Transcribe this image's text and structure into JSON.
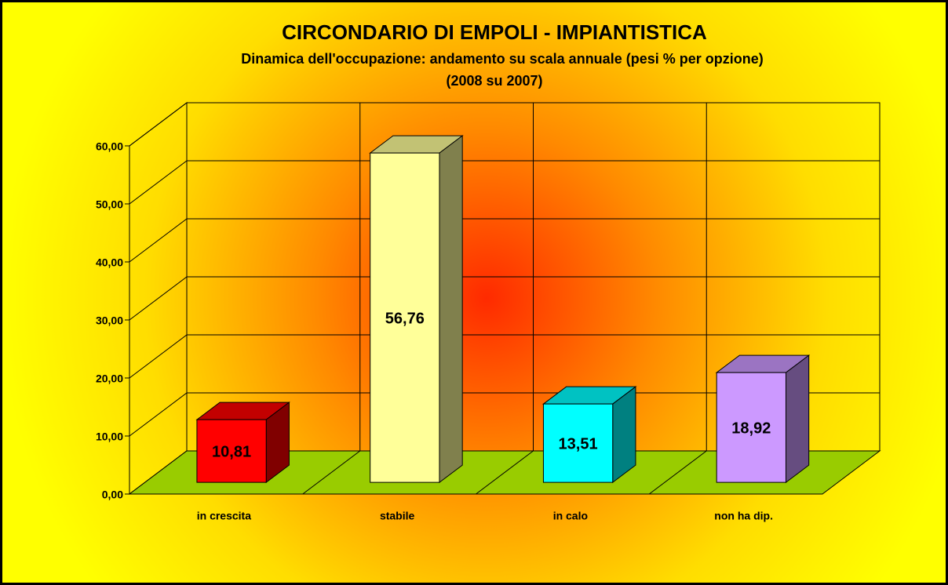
{
  "chart_data": {
    "type": "bar3d",
    "title": "CIRCONDARIO DI EMPOLI - IMPIANTISTICA",
    "subtitle": [
      "Dinamica dell'occupazione: andamento su scala annuale (pesi % per opzione)",
      "(2008 su 2007)"
    ],
    "categories": [
      "in crescita",
      "stabile",
      "in calo",
      "non ha dip."
    ],
    "values": [
      10.81,
      56.76,
      13.51,
      18.92
    ],
    "value_labels": [
      "10,81",
      "56,76",
      "13,51",
      "18,92"
    ],
    "colors": [
      "#ff0000",
      "#ffff99",
      "#00ffff",
      "#cc99ff"
    ],
    "ylim": [
      0,
      60
    ],
    "yticks": [
      {
        "value": 0,
        "label": "0,00"
      },
      {
        "value": 10,
        "label": "10,00"
      },
      {
        "value": 20,
        "label": "20,00"
      },
      {
        "value": 30,
        "label": "30,00"
      },
      {
        "value": 40,
        "label": "40,00"
      },
      {
        "value": 50,
        "label": "50,00"
      },
      {
        "value": 60,
        "label": "60,00"
      }
    ],
    "grid": true
  }
}
